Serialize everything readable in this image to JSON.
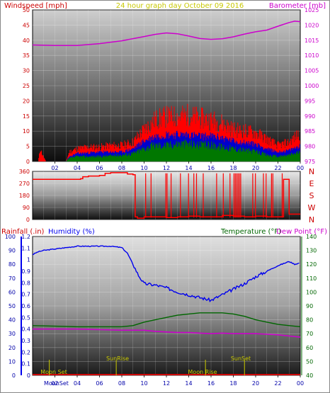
{
  "header": {
    "left": "Windspeed [mph]",
    "center": "24 hour graph day   October 09 2016",
    "right": "Barometer [mb]"
  },
  "colors": {
    "header_left": "#cc0000",
    "header_center": "#c8c800",
    "header_right": "#cc00cc",
    "wind": "#ff0000",
    "wind_avg": "#0000cc",
    "wind_min": "#007700",
    "barometer": "#cc00cc",
    "humidity": "#0000ee",
    "temperature": "#006600",
    "dewpoint": "#cc00cc",
    "rain": "#cc0000",
    "astro": "#c8c800",
    "tick": "#0000aa"
  },
  "chart_data": [
    {
      "type": "line",
      "panel": "wind-barometer",
      "x_ticks": [
        "02",
        "04",
        "06",
        "08",
        "10",
        "12",
        "14",
        "16",
        "18",
        "20",
        "22",
        "00"
      ],
      "y_left_ticks": [
        "0",
        "5",
        "10",
        "15",
        "20",
        "25",
        "30",
        "35",
        "40",
        "45",
        "50"
      ],
      "y_right_ticks": [
        "975",
        "980",
        "985",
        "990",
        "995",
        "1000",
        "1005",
        "1010",
        "1015",
        "1020",
        "1025"
      ],
      "ylim_left": [
        0,
        50
      ],
      "ylim_right": [
        973,
        1027
      ],
      "series": [
        {
          "axis": "right",
          "x": [
            0,
            2,
            4,
            6,
            8,
            10,
            11,
            12,
            13,
            14,
            15,
            16,
            17,
            18,
            19,
            20,
            21,
            22,
            23,
            23.5,
            24
          ],
          "values": [
            1014.5,
            1014.3,
            1014.3,
            1015.0,
            1016.0,
            1017.5,
            1018.3,
            1018.8,
            1018.5,
            1017.7,
            1016.8,
            1016.5,
            1016.7,
            1017.4,
            1018.4,
            1019.2,
            1019.8,
            1021.2,
            1022.5,
            1023.0,
            1022.8
          ]
        },
        {
          "axis": "left",
          "x": [
            0,
            0.5,
            0.7,
            0.9,
            1.2,
            2,
            3,
            3.3,
            4,
            5,
            6,
            7,
            8,
            9,
            10,
            11,
            12,
            13,
            14,
            15,
            16,
            17,
            18,
            19,
            20,
            21,
            22,
            23,
            24
          ],
          "values": [
            0,
            0,
            4,
            2,
            0,
            0,
            0,
            3,
            4,
            4.5,
            4.5,
            5,
            5,
            6,
            10,
            13,
            14,
            14,
            14.5,
            13.5,
            13,
            12,
            10,
            9.5,
            9,
            7,
            5,
            6,
            9
          ]
        },
        {
          "axis": "left",
          "x": [
            0,
            3,
            3.3,
            4,
            6,
            8,
            9,
            10,
            11,
            12,
            13,
            14,
            15,
            16,
            17,
            18,
            19,
            20,
            21,
            22,
            23,
            24
          ],
          "values": [
            0,
            0,
            1.5,
            2.5,
            3,
            3,
            4,
            6.5,
            8,
            8.5,
            8.5,
            8.5,
            8,
            8,
            7.5,
            6.5,
            6,
            5.5,
            4,
            3,
            3.5,
            5
          ]
        },
        {
          "axis": "left",
          "x": [
            0,
            3,
            3.3,
            4,
            6,
            8,
            9,
            10,
            11,
            12,
            13,
            14,
            15,
            16,
            17,
            18,
            19,
            20,
            21,
            22,
            23,
            24
          ],
          "values": [
            0,
            0,
            1,
            1.5,
            1.5,
            2,
            2.5,
            4,
            5,
            5,
            5.5,
            5.5,
            5,
            5,
            4.5,
            4,
            3.5,
            3,
            2,
            1.5,
            2,
            3
          ]
        }
      ]
    },
    {
      "type": "line",
      "panel": "wind-direction",
      "y_left_ticks": [
        "0",
        "90",
        "180",
        "270",
        "360"
      ],
      "y_right_labels": [
        "N",
        "W",
        "S",
        "E",
        "N"
      ],
      "ylim": [
        0,
        360
      ],
      "series": [
        {
          "x": [
            0,
            2,
            4,
            4.3,
            4.5,
            5,
            6,
            6.5,
            7,
            8,
            8.5,
            9,
            9.2,
            9.4,
            10,
            11,
            12,
            13,
            14,
            15,
            16,
            17,
            18,
            19,
            20,
            21,
            22,
            22.5,
            23,
            24
          ],
          "values": [
            300,
            300,
            300,
            305,
            320,
            325,
            330,
            345,
            350,
            350,
            340,
            335,
            20,
            10,
            20,
            20,
            15,
            20,
            25,
            20,
            20,
            30,
            25,
            20,
            25,
            20,
            20,
            300,
            40,
            40
          ]
        }
      ]
    },
    {
      "type": "line",
      "panel": "rain-humidity-temperature",
      "x_ticks": [
        "02",
        "04",
        "06",
        "08",
        "10",
        "12",
        "14",
        "16",
        "18",
        "20",
        "22",
        "00"
      ],
      "y_rain_ticks": [
        "0",
        "0.1",
        "0.2",
        "0.3",
        "0.4",
        "0.5",
        "0.6",
        "0.7",
        "0.8",
        "0.9",
        "1",
        "1.1",
        "1.2"
      ],
      "y_humidity_ticks": [
        "0",
        "10",
        "20",
        "30",
        "40",
        "50",
        "60",
        "70",
        "80",
        "90",
        "100"
      ],
      "y_temp_ticks": [
        "40",
        "50",
        "60",
        "70",
        "80",
        "90",
        "100",
        "110",
        "120",
        "130",
        "140"
      ],
      "ylim_humidity": [
        0,
        100
      ],
      "ylim_temp": [
        30,
        150
      ],
      "labels": {
        "rain": "Rainfall (.in)",
        "humidity": "Humidity (%)",
        "temperature": "Temperature (°F)",
        "dewpoint": "Dew Point (°F)"
      },
      "series": [
        {
          "axis": "humidity",
          "x": [
            0,
            0.5,
            1,
            2,
            3,
            4,
            5,
            6,
            7,
            8,
            8.5,
            9,
            9.5,
            10,
            11,
            12,
            13,
            14,
            15,
            16,
            16.5,
            17,
            18,
            19,
            20,
            21,
            22,
            23,
            23.5,
            24
          ],
          "values": [
            87,
            89,
            90,
            91,
            92,
            93,
            93,
            93,
            93,
            92,
            88,
            80,
            72,
            66,
            65,
            63,
            60,
            58,
            56,
            54,
            56,
            58,
            62,
            66,
            71,
            75,
            79,
            82,
            80,
            81
          ]
        },
        {
          "axis": "temp",
          "x": [
            0,
            2,
            4,
            6,
            8,
            9,
            10,
            11,
            12,
            13,
            14,
            15,
            16,
            17,
            18,
            19,
            20,
            21,
            22,
            23,
            24
          ],
          "values": [
            73,
            72.5,
            72,
            72,
            72,
            73,
            76,
            78,
            80,
            82,
            83,
            84,
            84,
            84,
            83,
            81,
            78,
            76,
            74,
            73,
            72
          ]
        },
        {
          "axis": "temp",
          "x": [
            0,
            2,
            4,
            6,
            8,
            9,
            10,
            11,
            12,
            13,
            14,
            15,
            16,
            17,
            18,
            19,
            20,
            21,
            22,
            23,
            24
          ],
          "values": [
            70,
            70,
            70,
            69.5,
            69,
            69,
            69,
            68,
            67.5,
            67,
            67,
            66.5,
            66,
            66.5,
            66,
            66,
            66,
            65.5,
            65,
            64,
            63
          ]
        },
        {
          "axis": "rain",
          "x": [
            0,
            24
          ],
          "values": [
            0,
            0
          ]
        }
      ],
      "annotations": [
        {
          "text": "Moon Set",
          "x": 1.5
        },
        {
          "text": "SunRise",
          "x": 7.5
        },
        {
          "text": "Moon Rise",
          "x": 15.5
        },
        {
          "text": "SunSet",
          "x": 19
        }
      ],
      "x_overlay_label": "MoonSet"
    }
  ]
}
